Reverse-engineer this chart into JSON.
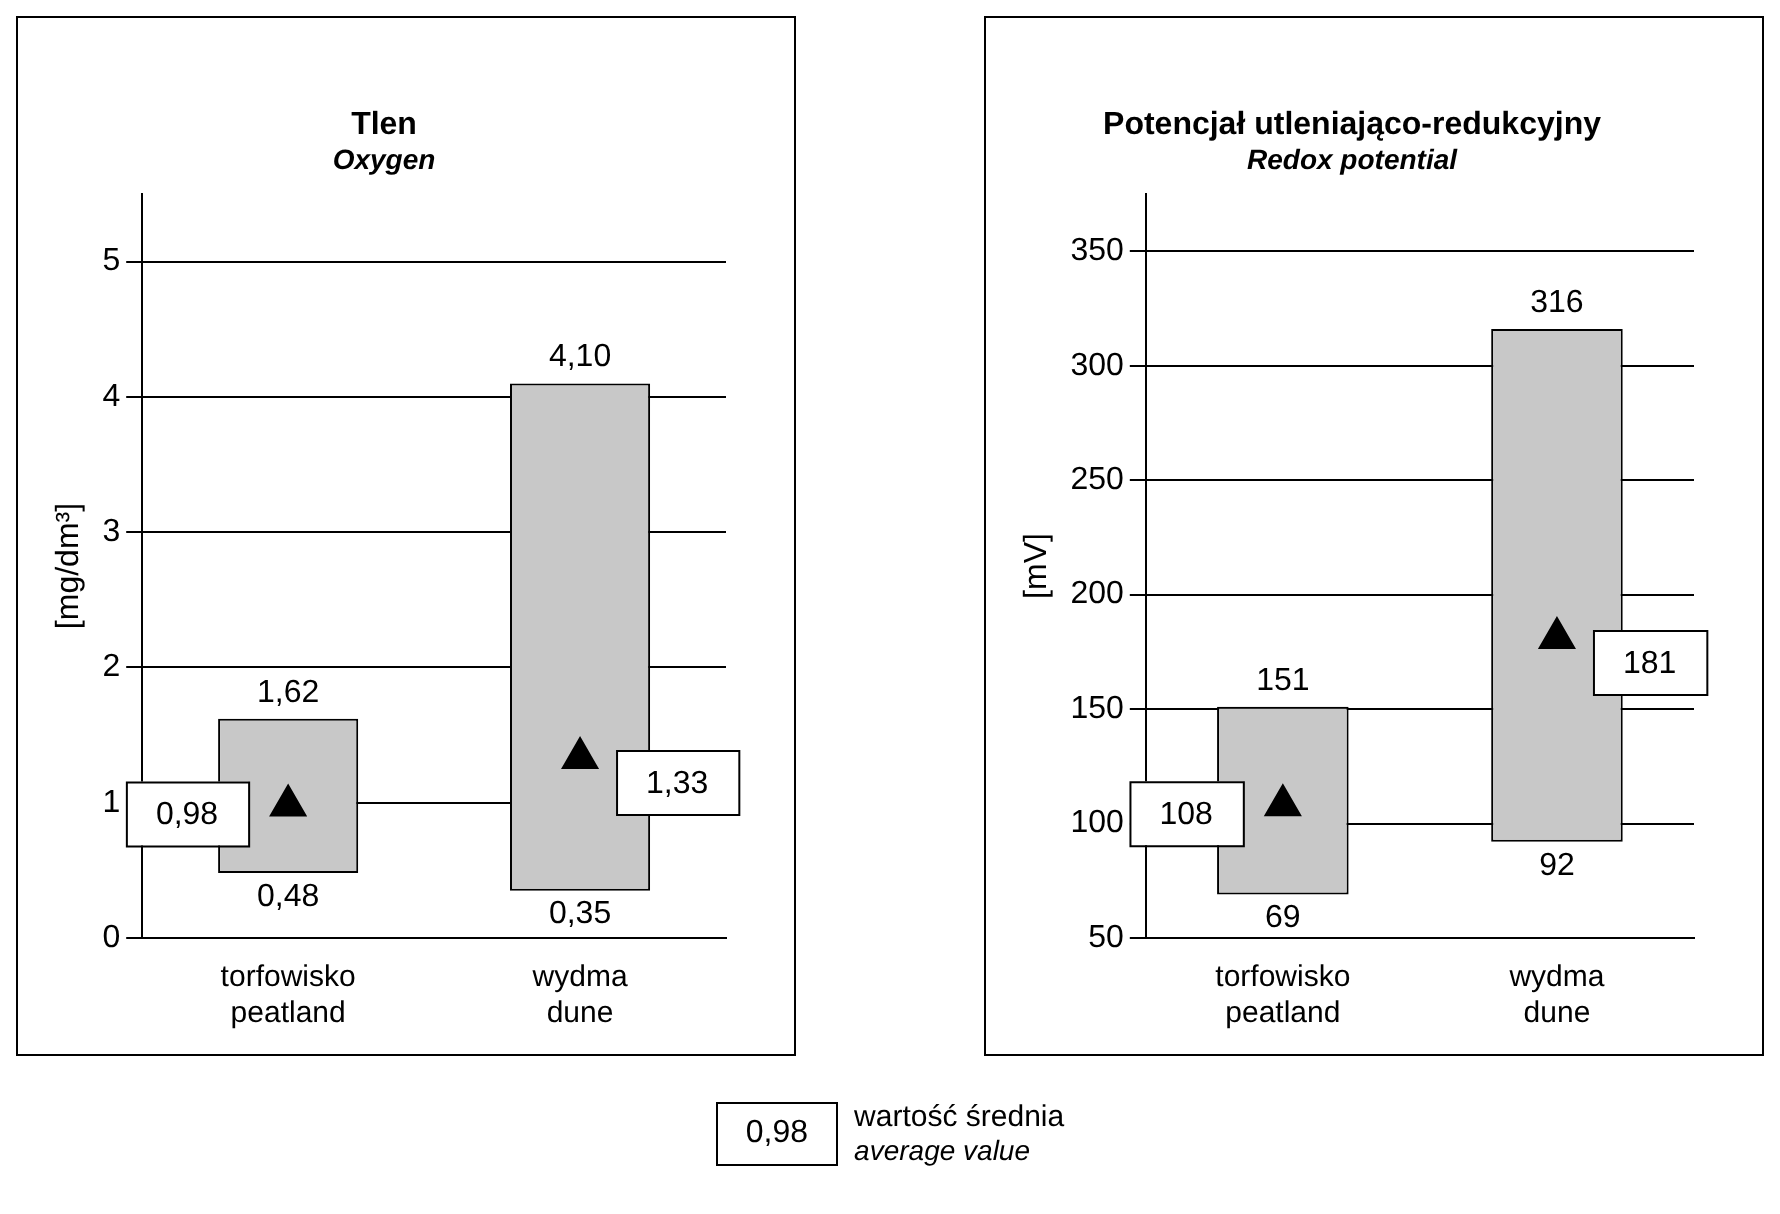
{
  "chart_data": [
    {
      "type": "bar",
      "title": "Tlen",
      "subtitle": "Oxygen",
      "ylabel": "[mg/dm³]",
      "categories": [
        "torfowisko\npeatland",
        "wydma\ndune"
      ],
      "ylim": [
        0,
        5.5
      ],
      "yticks": [
        0,
        1,
        2,
        3,
        4,
        5
      ],
      "grid": "y",
      "legend": "bottom",
      "series": [
        {
          "type": "bar",
          "colors": [
            "#c8c8c8",
            "#c8c8c8"
          ],
          "base": [
            0.48,
            0.35
          ],
          "values": [
            1.14,
            3.75
          ]
        },
        {
          "type": "scatter",
          "name": "wartość średnia\naverage value",
          "marker": "triangle",
          "color": "#000000",
          "x": [
            "torfowisko\npeatland",
            "wydma\ndune"
          ],
          "values": [
            0.98,
            1.33
          ],
          "value_labels": [
            "0,98",
            "1,33"
          ]
        }
      ],
      "annotations": [
        {
          "text": "1,62",
          "x": "torfowisko\npeatland",
          "y": 1.62
        },
        {
          "text": "0,48",
          "x": "torfowisko\npeatland",
          "y": 0.48
        },
        {
          "text": "4,10",
          "x": "wydma\ndune",
          "y": 4.1
        },
        {
          "text": "0,35",
          "x": "wydma\ndune",
          "y": 0.35
        }
      ]
    },
    {
      "type": "bar",
      "title": "Potencjał utleniająco-redukcyjny",
      "subtitle": "Redox potential",
      "ylabel": "[mV]",
      "categories": [
        "torfowisko\npeatland",
        "wydma\ndune"
      ],
      "ylim": [
        50,
        375
      ],
      "yticks": [
        50,
        100,
        150,
        200,
        250,
        300,
        350
      ],
      "grid": "y",
      "series": [
        {
          "type": "bar",
          "colors": [
            "#c8c8c8",
            "#c8c8c8"
          ],
          "base": [
            69,
            92
          ],
          "values": [
            82,
            224
          ]
        },
        {
          "type": "scatter",
          "marker": "triangle",
          "color": "#000000",
          "x": [
            "torfowisko\npeatland",
            "wydma\ndune"
          ],
          "values": [
            108,
            181
          ],
          "value_labels": [
            "108",
            "181"
          ]
        }
      ],
      "annotations": [
        {
          "text": "151",
          "x": "torfowisko\npeatland",
          "y": 151
        },
        {
          "text": "69",
          "x": "torfowisko\npeatland",
          "y": 69
        },
        {
          "text": "316",
          "x": "wydma\ndune",
          "y": 316
        },
        {
          "text": "92",
          "x": "wydma\ndune",
          "y": 92
        }
      ]
    }
  ]
}
